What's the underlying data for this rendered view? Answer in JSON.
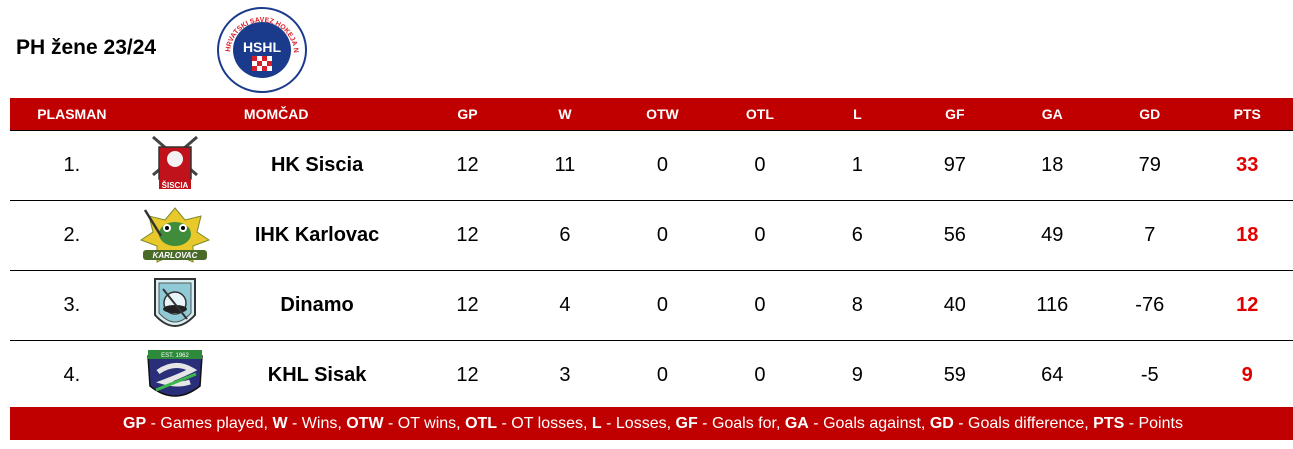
{
  "title": "PH žene 23/24",
  "logo_text": "HSHL",
  "logo_ring_text": "HRVATSKI SAVEZ HOKEJA NA LEDU",
  "headers": {
    "position": "PLASMAN",
    "team": "MOMČAD",
    "gp": "GP",
    "w": "W",
    "otw": "OTW",
    "otl": "OTL",
    "l": "L",
    "gf": "GF",
    "ga": "GA",
    "gd": "GD",
    "pts": "PTS"
  },
  "rows": [
    {
      "position": "1.",
      "team": "HK Siscia",
      "logo_text": "ŠISCIA",
      "gp": "12",
      "w": "11",
      "otw": "0",
      "otl": "0",
      "l": "1",
      "gf": "97",
      "ga": "18",
      "gd": "79",
      "pts": "33"
    },
    {
      "position": "2.",
      "team": "IHK Karlovac",
      "logo_text": "KARLOVAC",
      "gp": "12",
      "w": "6",
      "otw": "0",
      "otl": "0",
      "l": "6",
      "gf": "56",
      "ga": "49",
      "gd": "7",
      "pts": "18"
    },
    {
      "position": "3.",
      "team": "Dinamo",
      "logo_text": "",
      "gp": "12",
      "w": "4",
      "otw": "0",
      "otl": "0",
      "l": "8",
      "gf": "40",
      "ga": "116",
      "gd": "-76",
      "pts": "12"
    },
    {
      "position": "4.",
      "team": "KHL Sisak",
      "logo_text": "EST. 1962",
      "gp": "12",
      "w": "3",
      "otw": "0",
      "otl": "0",
      "l": "9",
      "gf": "59",
      "ga": "64",
      "gd": "-5",
      "pts": "9"
    }
  ],
  "legend": [
    {
      "abbr": "GP",
      "text": " - Games played, "
    },
    {
      "abbr": "W",
      "text": " - Wins, "
    },
    {
      "abbr": "OTW",
      "text": " - OT wins, "
    },
    {
      "abbr": "OTL",
      "text": " - OT losses, "
    },
    {
      "abbr": "L",
      "text": " - Losses, "
    },
    {
      "abbr": "GF",
      "text": " - Goals for, "
    },
    {
      "abbr": "GA",
      "text": " - Goals against, "
    },
    {
      "abbr": "GD",
      "text": " - Goals difference, "
    },
    {
      "abbr": "PTS",
      "text": " - Points"
    }
  ],
  "colors": {
    "header_bg": "#c00000",
    "points": "#e00000",
    "logo_blue": "#1a3a8c",
    "logo_red": "#d81e2a"
  }
}
